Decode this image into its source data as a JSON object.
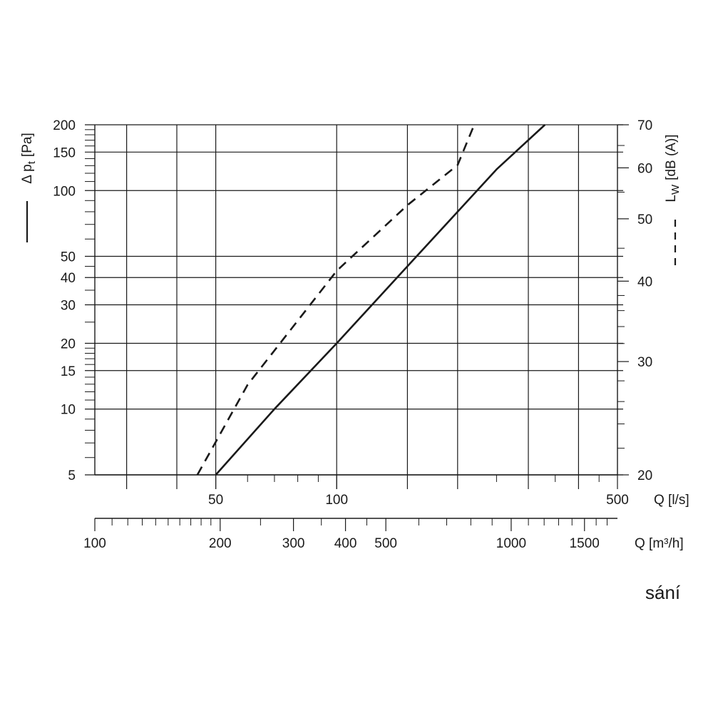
{
  "caption": "sání",
  "chart_data": {
    "type": "line",
    "x_scale": "log",
    "y_scale": "log",
    "xlim_ls": [
      25,
      500
    ],
    "xlim_m3h": [
      100,
      1800
    ],
    "ylim_pa": [
      5,
      200
    ],
    "ylim_db": [
      20,
      70
    ],
    "grid": true,
    "left_axis_label": "Δ p",
    "left_axis_label_sub": "t",
    "left_axis_unit": "[Pa]",
    "right_axis_label": "L",
    "right_axis_label_sub": "W",
    "right_axis_unit": "[dB (A)]",
    "x_top_label": "Q [l/s]",
    "x_bottom_label": "Q [m³/h]",
    "x_top_ticks": [
      50,
      100,
      500
    ],
    "x_top_gridlines": [
      30,
      40,
      50,
      100,
      150,
      200,
      300,
      400
    ],
    "x_bottom_ticks": [
      100,
      200,
      300,
      400,
      500,
      1000,
      1500
    ],
    "y_left_ticks": [
      5,
      10,
      15,
      20,
      30,
      40,
      50,
      100,
      150,
      200
    ],
    "y_right_ticks": [
      20,
      30,
      40,
      50,
      60,
      70
    ],
    "series": [
      {
        "line_style": "solid",
        "axis": "left",
        "x": [
          50,
          70,
          100,
          150,
          200,
          250,
          330
        ],
        "y": [
          5,
          10,
          20,
          45,
          80,
          125,
          200
        ]
      },
      {
        "line_style": "dashed",
        "axis": "right",
        "x": [
          45,
          60,
          100,
          150,
          200,
          220
        ],
        "y": [
          20,
          27.6,
          41.5,
          52.5,
          60.6,
          70
        ]
      }
    ]
  }
}
